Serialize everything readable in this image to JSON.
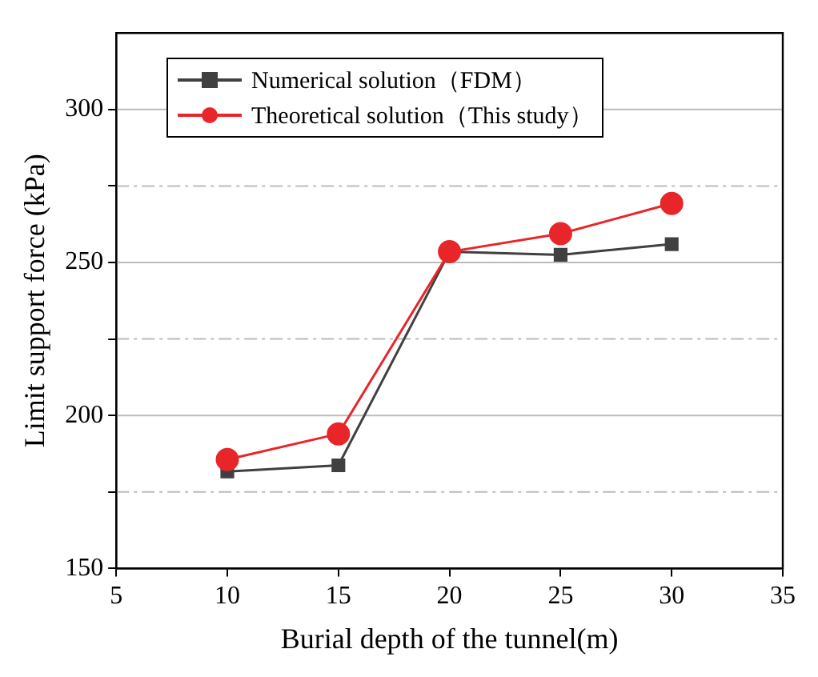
{
  "chart_data": {
    "type": "line",
    "xlabel": "Burial depth of the tunnel(m)",
    "ylabel": "Limit support force (kPa)",
    "x": [
      10,
      15,
      20,
      25,
      30
    ],
    "series": [
      {
        "name": "Numerical solution（FDM）",
        "color": "#404040",
        "marker": "square",
        "values": [
          181.7,
          183.7,
          253.5,
          252.5,
          256
        ]
      },
      {
        "name": "Theoretical solution（This study）",
        "color": "#e8262a",
        "marker": "circle",
        "values": [
          185.6,
          194,
          253.5,
          259.4,
          269.3
        ]
      }
    ],
    "xlim": [
      5,
      35
    ],
    "xticks": [
      5,
      10,
      15,
      20,
      25,
      30,
      35
    ],
    "ylim": [
      150,
      325
    ],
    "yticks": [
      150,
      {
        "value": 175,
        "label": null
      },
      200,
      {
        "value": 225,
        "label": null
      },
      250,
      {
        "value": 275,
        "label": null
      },
      300
    ],
    "grid": "y",
    "legend": "top left",
    "line_style": "solid"
  }
}
